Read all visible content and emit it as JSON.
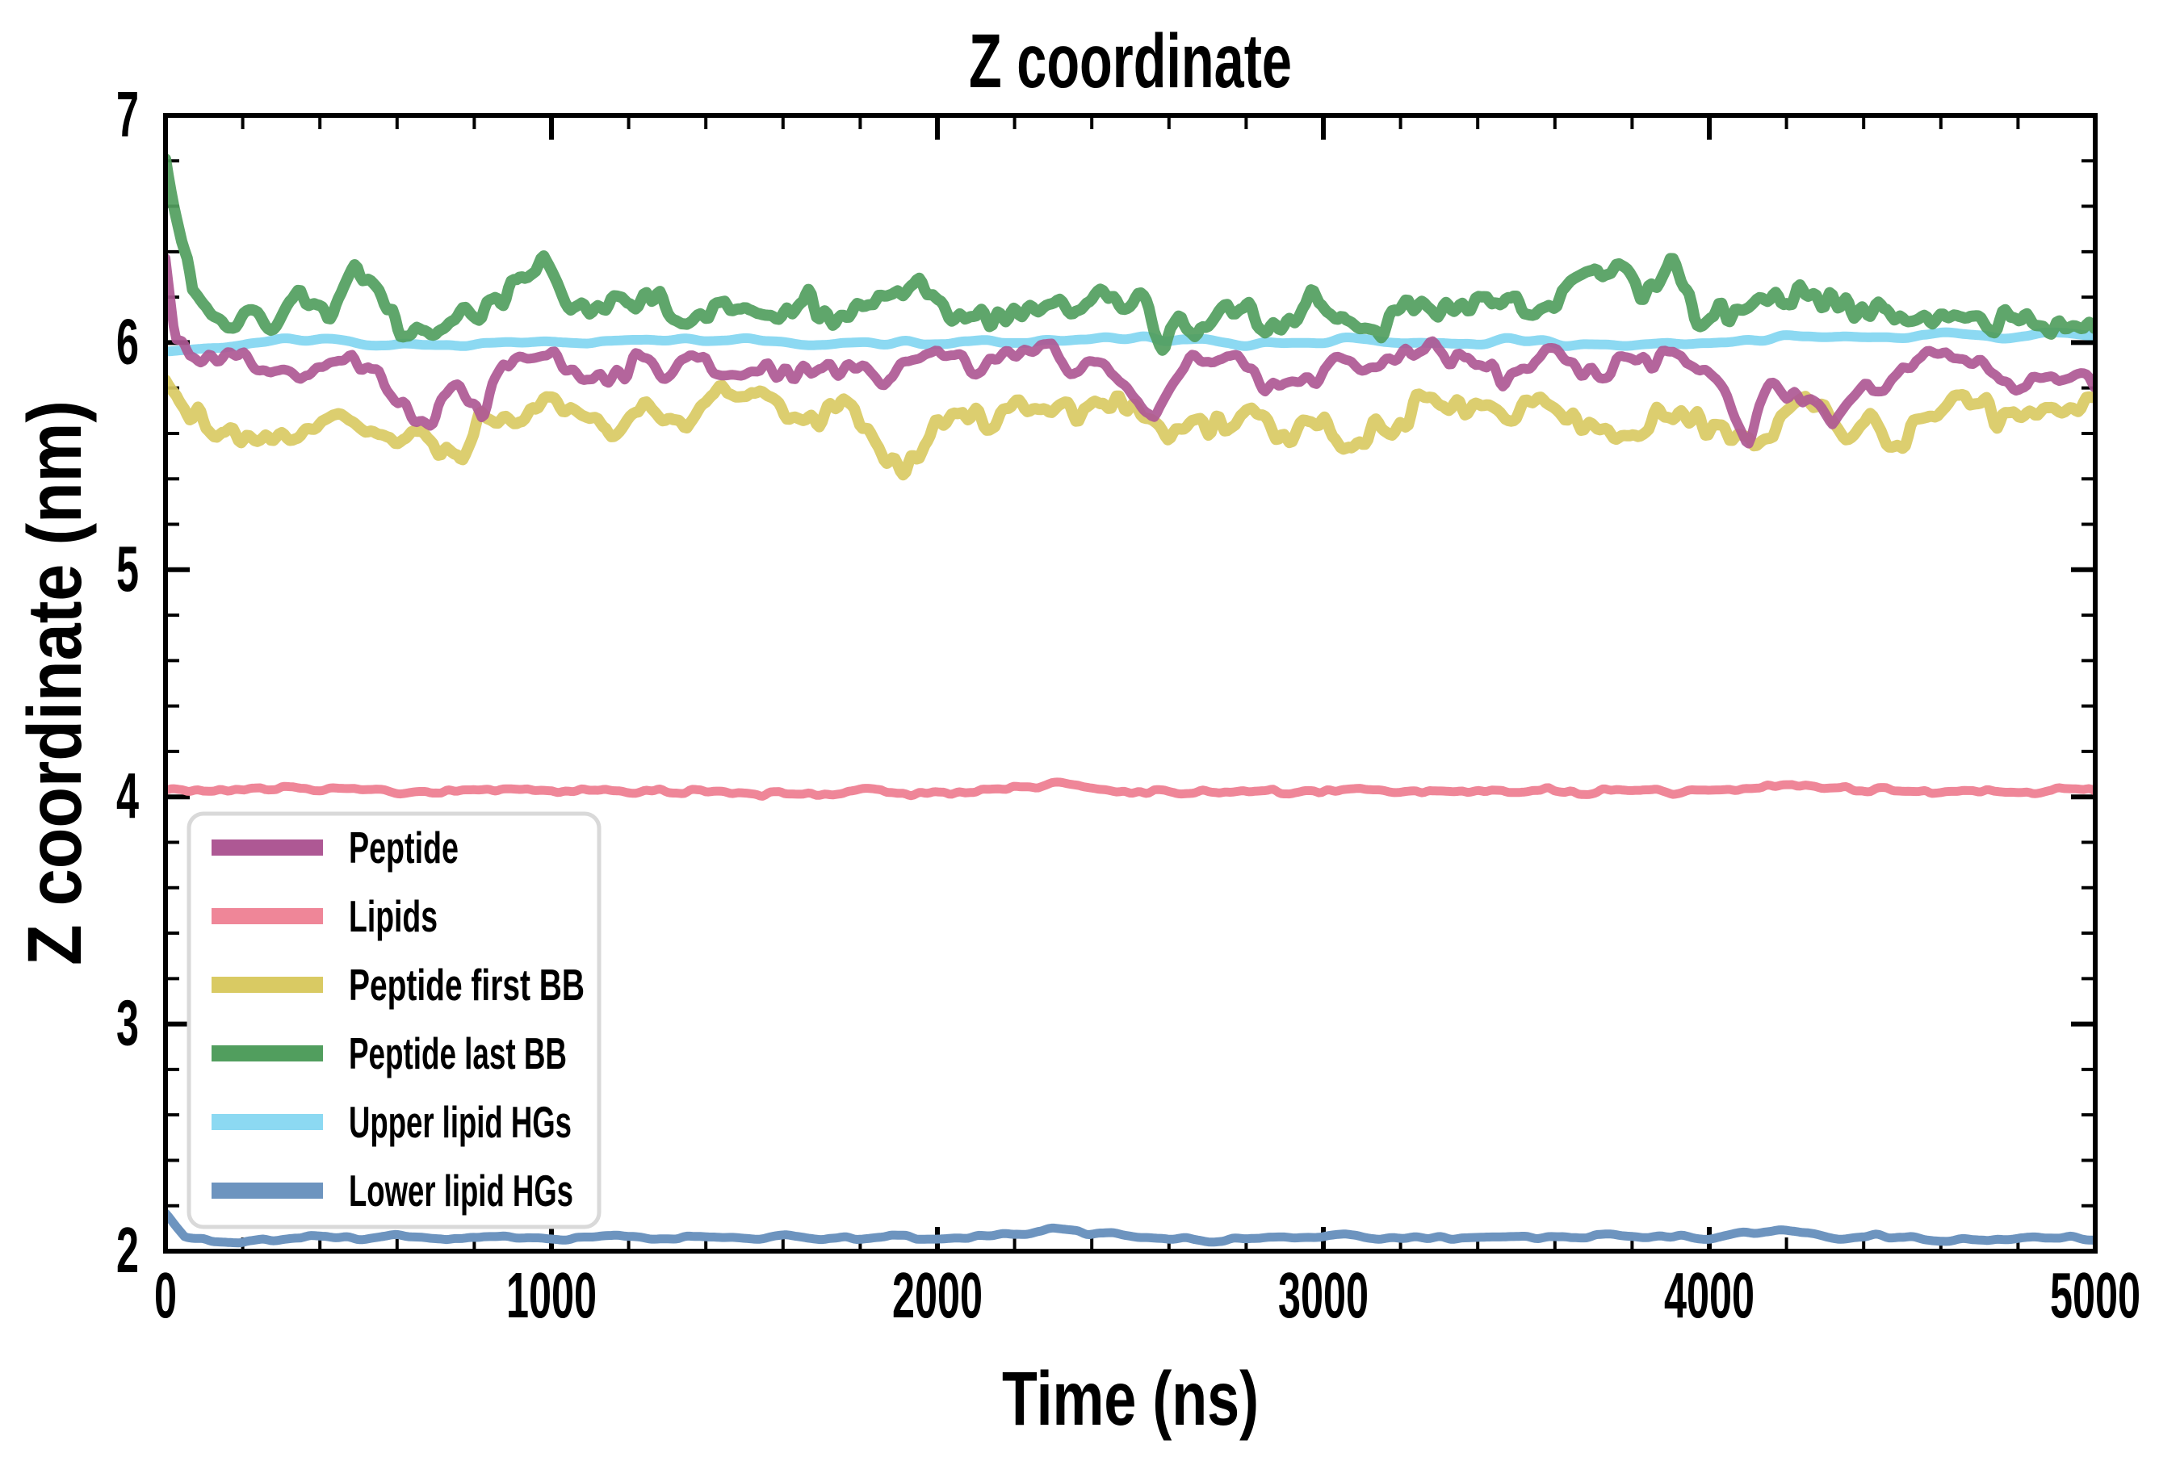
{
  "figure": {
    "background": "#ffffff",
    "text_color": "#000000",
    "frame_color": "#000000",
    "legend_border_color": "#d9d9d9"
  },
  "chart_data": {
    "type": "line",
    "title": "Z coordinate",
    "xlabel": "Time (ns)",
    "ylabel": "Z coordinate (nm)",
    "xlim": [
      0,
      5000
    ],
    "ylim": [
      2,
      7
    ],
    "grid": false,
    "legend_position": "lower left",
    "xticks": {
      "major": [
        0,
        1000,
        2000,
        3000,
        4000,
        5000
      ],
      "minor_step": 200
    },
    "yticks": {
      "major": [
        2,
        3,
        4,
        5,
        6,
        7
      ],
      "minor_step": 0.2
    },
    "series": [
      {
        "name": "Peptide",
        "color": "#ae5894",
        "width": 12,
        "opacity": 0.92,
        "draw_order": 3,
        "noise": {
          "amp": 0.085,
          "wavelength_ns": 62,
          "seed": 11
        },
        "anchors": [
          [
            0,
            6.4
          ],
          [
            25,
            6.05
          ],
          [
            60,
            5.95
          ],
          [
            150,
            5.92
          ],
          [
            250,
            5.88
          ],
          [
            350,
            5.9
          ],
          [
            450,
            5.92
          ],
          [
            550,
            5.85
          ],
          [
            650,
            5.72
          ],
          [
            700,
            5.7
          ],
          [
            760,
            5.8
          ],
          [
            820,
            5.72
          ],
          [
            900,
            5.95
          ],
          [
            1000,
            5.92
          ],
          [
            1100,
            5.88
          ],
          [
            1200,
            5.9
          ],
          [
            1300,
            5.87
          ],
          [
            1400,
            5.92
          ],
          [
            1500,
            5.9
          ],
          [
            1600,
            5.85
          ],
          [
            1700,
            5.9
          ],
          [
            1800,
            5.86
          ],
          [
            1900,
            5.83
          ],
          [
            2000,
            5.9
          ],
          [
            2100,
            5.88
          ],
          [
            2200,
            5.93
          ],
          [
            2300,
            5.96
          ],
          [
            2400,
            5.9
          ],
          [
            2500,
            5.8
          ],
          [
            2560,
            5.72
          ],
          [
            2650,
            5.88
          ],
          [
            2750,
            5.9
          ],
          [
            2850,
            5.82
          ],
          [
            2950,
            5.88
          ],
          [
            3050,
            5.9
          ],
          [
            3150,
            5.86
          ],
          [
            3250,
            5.92
          ],
          [
            3350,
            5.94
          ],
          [
            3450,
            5.88
          ],
          [
            3550,
            5.9
          ],
          [
            3650,
            5.92
          ],
          [
            3750,
            5.88
          ],
          [
            3850,
            5.9
          ],
          [
            3950,
            5.92
          ],
          [
            4050,
            5.75
          ],
          [
            4100,
            5.62
          ],
          [
            4170,
            5.85
          ],
          [
            4250,
            5.78
          ],
          [
            4320,
            5.62
          ],
          [
            4400,
            5.8
          ],
          [
            4500,
            5.92
          ],
          [
            4600,
            5.88
          ],
          [
            4700,
            5.9
          ],
          [
            4800,
            5.85
          ],
          [
            4900,
            5.82
          ],
          [
            5000,
            5.86
          ]
        ]
      },
      {
        "name": "Lipids",
        "color": "#ef8698",
        "width": 11,
        "opacity": 1.0,
        "draw_order": 4,
        "noise": {
          "amp": 0.016,
          "wavelength_ns": 55,
          "seed": 22
        },
        "anchors": [
          [
            0,
            4.03
          ],
          [
            300,
            4.04
          ],
          [
            600,
            4.02
          ],
          [
            1000,
            4.03
          ],
          [
            1500,
            4.02
          ],
          [
            2000,
            4.02
          ],
          [
            2300,
            4.05
          ],
          [
            2600,
            4.02
          ],
          [
            3000,
            4.02
          ],
          [
            3500,
            4.03
          ],
          [
            4000,
            4.02
          ],
          [
            4250,
            4.05
          ],
          [
            4600,
            4.02
          ],
          [
            5000,
            4.03
          ]
        ]
      },
      {
        "name": "Peptide first BB",
        "color": "#d9ca63",
        "width": 14,
        "opacity": 0.92,
        "draw_order": 2,
        "noise": {
          "amp": 0.1,
          "wavelength_ns": 58,
          "seed": 33
        },
        "anchors": [
          [
            0,
            5.88
          ],
          [
            60,
            5.7
          ],
          [
            150,
            5.62
          ],
          [
            250,
            5.58
          ],
          [
            350,
            5.65
          ],
          [
            450,
            5.72
          ],
          [
            550,
            5.62
          ],
          [
            650,
            5.58
          ],
          [
            750,
            5.55
          ],
          [
            850,
            5.65
          ],
          [
            950,
            5.72
          ],
          [
            1050,
            5.7
          ],
          [
            1150,
            5.66
          ],
          [
            1250,
            5.72
          ],
          [
            1350,
            5.68
          ],
          [
            1450,
            5.74
          ],
          [
            1550,
            5.72
          ],
          [
            1650,
            5.68
          ],
          [
            1750,
            5.7
          ],
          [
            1850,
            5.58
          ],
          [
            1920,
            5.5
          ],
          [
            2000,
            5.62
          ],
          [
            2100,
            5.65
          ],
          [
            2200,
            5.7
          ],
          [
            2300,
            5.68
          ],
          [
            2400,
            5.72
          ],
          [
            2500,
            5.7
          ],
          [
            2600,
            5.62
          ],
          [
            2700,
            5.65
          ],
          [
            2800,
            5.7
          ],
          [
            2900,
            5.62
          ],
          [
            3000,
            5.66
          ],
          [
            3100,
            5.6
          ],
          [
            3200,
            5.68
          ],
          [
            3300,
            5.7
          ],
          [
            3400,
            5.72
          ],
          [
            3500,
            5.7
          ],
          [
            3600,
            5.72
          ],
          [
            3700,
            5.68
          ],
          [
            3800,
            5.62
          ],
          [
            3900,
            5.65
          ],
          [
            4000,
            5.6
          ],
          [
            4100,
            5.58
          ],
          [
            4200,
            5.68
          ],
          [
            4300,
            5.72
          ],
          [
            4400,
            5.62
          ],
          [
            4500,
            5.58
          ],
          [
            4600,
            5.68
          ],
          [
            4700,
            5.72
          ],
          [
            4800,
            5.68
          ],
          [
            4900,
            5.65
          ],
          [
            5000,
            5.7
          ]
        ]
      },
      {
        "name": "Peptide last BB",
        "color": "#519e5e",
        "width": 14,
        "opacity": 0.92,
        "draw_order": 1,
        "noise": {
          "amp": 0.1,
          "wavelength_ns": 55,
          "seed": 44
        },
        "anchors": [
          [
            0,
            6.87
          ],
          [
            30,
            6.55
          ],
          [
            70,
            6.15
          ],
          [
            150,
            6.08
          ],
          [
            250,
            6.12
          ],
          [
            350,
            6.18
          ],
          [
            420,
            6.12
          ],
          [
            500,
            6.28
          ],
          [
            600,
            6.1
          ],
          [
            700,
            6.05
          ],
          [
            800,
            6.12
          ],
          [
            900,
            6.25
          ],
          [
            980,
            6.35
          ],
          [
            1050,
            6.15
          ],
          [
            1150,
            6.12
          ],
          [
            1250,
            6.18
          ],
          [
            1350,
            6.1
          ],
          [
            1450,
            6.18
          ],
          [
            1550,
            6.12
          ],
          [
            1650,
            6.15
          ],
          [
            1750,
            6.1
          ],
          [
            1850,
            6.18
          ],
          [
            1950,
            6.22
          ],
          [
            2050,
            6.12
          ],
          [
            2150,
            6.15
          ],
          [
            2250,
            6.2
          ],
          [
            2350,
            6.12
          ],
          [
            2450,
            6.22
          ],
          [
            2550,
            6.08
          ],
          [
            2650,
            6.05
          ],
          [
            2750,
            6.12
          ],
          [
            2850,
            6.08
          ],
          [
            2950,
            6.18
          ],
          [
            3050,
            6.12
          ],
          [
            3150,
            6.08
          ],
          [
            3250,
            6.15
          ],
          [
            3350,
            6.12
          ],
          [
            3450,
            6.18
          ],
          [
            3550,
            6.15
          ],
          [
            3650,
            6.25
          ],
          [
            3750,
            6.32
          ],
          [
            3820,
            6.2
          ],
          [
            3900,
            6.33
          ],
          [
            3980,
            6.15
          ],
          [
            4100,
            6.12
          ],
          [
            4200,
            6.18
          ],
          [
            4300,
            6.15
          ],
          [
            4400,
            6.1
          ],
          [
            4500,
            6.15
          ],
          [
            4600,
            6.12
          ],
          [
            4700,
            6.15
          ],
          [
            4800,
            6.1
          ],
          [
            4900,
            6.05
          ],
          [
            5000,
            6.0
          ]
        ]
      },
      {
        "name": "Upper lipid HGs",
        "color": "#8cd9f2",
        "width": 12,
        "opacity": 1.0,
        "draw_order": 0,
        "noise": {
          "amp": 0.022,
          "wavelength_ns": 140,
          "seed": 55
        },
        "anchors": [
          [
            0,
            5.97
          ],
          [
            300,
            6.0
          ],
          [
            800,
            6.0
          ],
          [
            1500,
            6.0
          ],
          [
            2200,
            6.01
          ],
          [
            3000,
            6.0
          ],
          [
            3800,
            6.0
          ],
          [
            4400,
            6.02
          ],
          [
            5000,
            6.03
          ]
        ]
      },
      {
        "name": "Lower lipid HGs",
        "color": "#6d94bf",
        "width": 11,
        "opacity": 1.0,
        "draw_order": 5,
        "noise": {
          "amp": 0.018,
          "wavelength_ns": 85,
          "seed": 66
        },
        "anchors": [
          [
            0,
            2.16
          ],
          [
            50,
            2.07
          ],
          [
            200,
            2.05
          ],
          [
            400,
            2.06
          ],
          [
            700,
            2.06
          ],
          [
            1000,
            2.06
          ],
          [
            1500,
            2.06
          ],
          [
            2000,
            2.06
          ],
          [
            2300,
            2.09
          ],
          [
            2600,
            2.05
          ],
          [
            3000,
            2.06
          ],
          [
            3500,
            2.06
          ],
          [
            4000,
            2.06
          ],
          [
            4200,
            2.08
          ],
          [
            4600,
            2.05
          ],
          [
            5000,
            2.05
          ]
        ]
      }
    ]
  }
}
